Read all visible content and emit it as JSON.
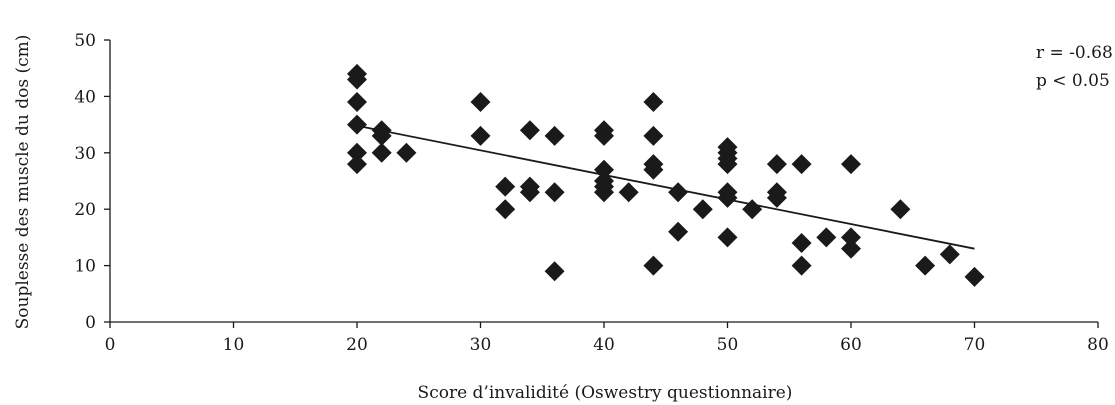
{
  "chart_data": {
    "type": "scatter",
    "xlabel": "Score d’invalidité (Oswestry questionnaire)",
    "ylabel": "Souplesse des muscle du dos (cm)",
    "xlim": [
      0,
      80
    ],
    "ylim": [
      0,
      50
    ],
    "x_ticks": [
      "0",
      "10",
      "20",
      "30",
      "40",
      "50",
      "60",
      "70",
      "80"
    ],
    "y_ticks": [
      "0",
      "10",
      "20",
      "30",
      "40",
      "50"
    ],
    "grid": false,
    "marker": "diamond",
    "marker_color": "#1a1a1a",
    "annotations": [
      "r = -0.68",
      "p < 0.05"
    ],
    "trendline": {
      "type": "linear",
      "x": [
        20,
        70
      ],
      "y": [
        34.8,
        13.0
      ]
    },
    "points": [
      [
        20,
        44
      ],
      [
        20,
        43
      ],
      [
        20,
        39
      ],
      [
        20,
        35
      ],
      [
        20,
        30
      ],
      [
        20,
        28
      ],
      [
        22,
        34
      ],
      [
        22,
        33
      ],
      [
        22,
        30
      ],
      [
        24,
        30
      ],
      [
        30,
        39
      ],
      [
        30,
        33
      ],
      [
        32,
        24
      ],
      [
        32,
        20
      ],
      [
        34,
        34
      ],
      [
        34,
        24
      ],
      [
        34,
        23
      ],
      [
        36,
        33
      ],
      [
        36,
        23
      ],
      [
        36,
        9
      ],
      [
        40,
        34
      ],
      [
        40,
        33
      ],
      [
        40,
        27
      ],
      [
        40,
        25
      ],
      [
        40,
        24
      ],
      [
        40,
        23
      ],
      [
        42,
        23
      ],
      [
        44,
        39
      ],
      [
        44,
        33
      ],
      [
        44,
        28
      ],
      [
        44,
        27
      ],
      [
        44,
        10
      ],
      [
        46,
        23
      ],
      [
        46,
        16
      ],
      [
        48,
        20
      ],
      [
        50,
        31
      ],
      [
        50,
        30
      ],
      [
        50,
        29
      ],
      [
        50,
        28
      ],
      [
        50,
        23
      ],
      [
        50,
        22
      ],
      [
        50,
        15
      ],
      [
        52,
        20
      ],
      [
        54,
        28
      ],
      [
        54,
        23
      ],
      [
        54,
        22
      ],
      [
        56,
        28
      ],
      [
        56,
        14
      ],
      [
        56,
        10
      ],
      [
        58,
        15
      ],
      [
        60,
        28
      ],
      [
        60,
        15
      ],
      [
        60,
        13
      ],
      [
        64,
        20
      ],
      [
        66,
        10
      ],
      [
        68,
        12
      ],
      [
        70,
        8
      ]
    ]
  }
}
